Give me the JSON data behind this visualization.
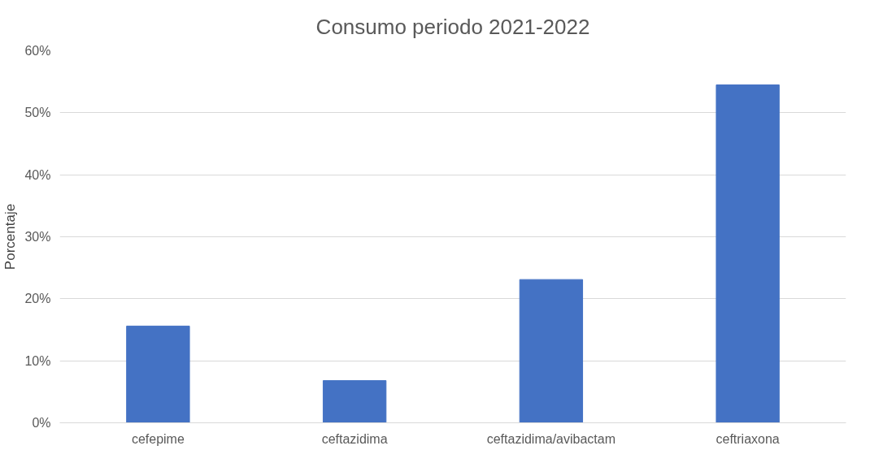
{
  "chart_data": {
    "type": "bar",
    "title": "Consumo periodo 2021-2022",
    "ylabel": "Porcentaje",
    "categories": [
      "cefepime",
      "ceftazidima",
      "ceftazidima/avibactam",
      "ceftriaxona"
    ],
    "values": [
      15.6,
      6.8,
      23.1,
      54.5
    ],
    "color": "#4472c4",
    "ylim": [
      0,
      60
    ],
    "yticks": [
      {
        "value": 0,
        "label": "0%"
      },
      {
        "value": 10,
        "label": "10%"
      },
      {
        "value": 20,
        "label": "20%"
      },
      {
        "value": 30,
        "label": "30%"
      },
      {
        "value": 40,
        "label": "40%"
      },
      {
        "value": 50,
        "label": "50%"
      },
      {
        "value": 60,
        "label": "60%"
      }
    ],
    "grid": "y"
  }
}
